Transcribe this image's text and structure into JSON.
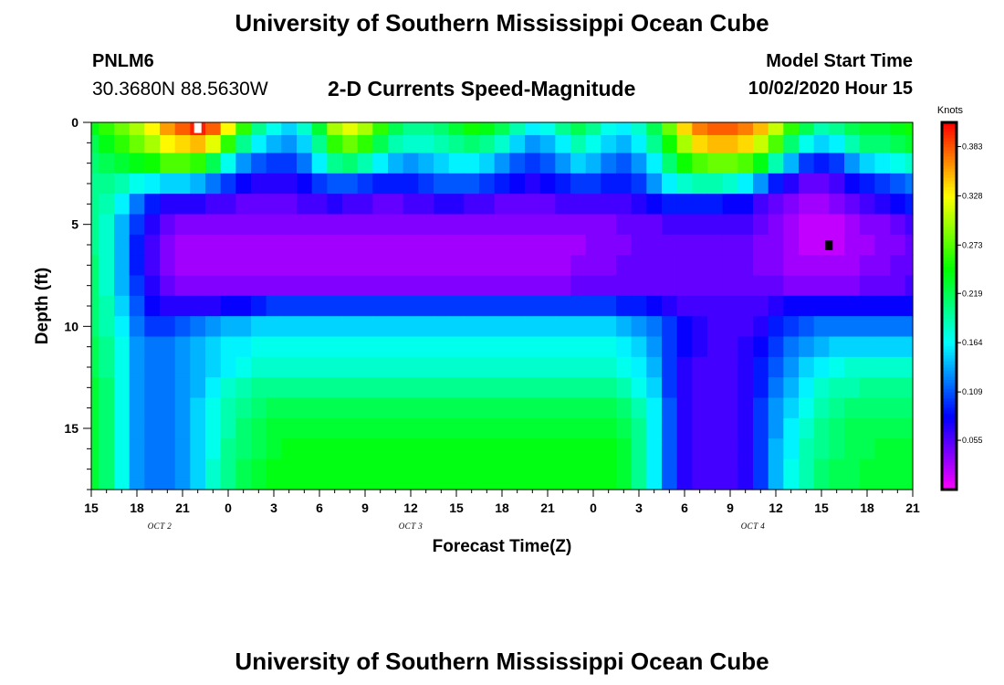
{
  "header": {
    "title": "University of Southern Mississippi Ocean Cube",
    "station_id": "PNLM6",
    "coordinates": "30.3680N 88.5630W",
    "subtitle": "2-D Currents Speed-Magnitude",
    "run_label": "Model Start Time",
    "run_time": "10/02/2020 Hour 15"
  },
  "footer": {
    "title": "University of Southern Mississippi Ocean Cube"
  },
  "chart_data": {
    "type": "heatmap",
    "title": "2-D Currents Speed-Magnitude",
    "xlabel": "Forecast Time(Z)",
    "ylabel": "Depth (ft)",
    "x_range_hours": [
      0,
      54
    ],
    "x_ticks": [
      "15",
      "18",
      "21",
      "0",
      "3",
      "6",
      "9",
      "12",
      "15",
      "18",
      "21",
      "0",
      "3",
      "6",
      "9",
      "12",
      "15",
      "18",
      "21"
    ],
    "date_labels": [
      {
        "label": "OCT 2",
        "hour": 4.5
      },
      {
        "label": "OCT 3",
        "hour": 21
      },
      {
        "label": "OCT 4",
        "hour": 43.5
      }
    ],
    "ylim": [
      0,
      18
    ],
    "y_ticks": [
      0,
      5,
      10,
      15
    ],
    "units": "Knots",
    "colorbar_range": [
      0,
      0.41
    ],
    "colorbar_ticks": [
      "0.383",
      "0.328",
      "0.273",
      "0.219",
      "0.164",
      "0.109",
      "0.055"
    ],
    "colorbar_tick_values": [
      0.383,
      0.328,
      0.273,
      0.219,
      0.164,
      0.109,
      0.055
    ],
    "depth_layers_ft": [
      0.25,
      1,
      2,
      3,
      4,
      5,
      6,
      7,
      8,
      9,
      10,
      11,
      12,
      13,
      14,
      15,
      16,
      17,
      17.75
    ],
    "time_samples_hours": [
      0,
      1,
      2,
      3,
      4,
      5,
      6,
      7,
      8,
      9,
      10,
      11,
      12,
      13,
      14,
      15,
      16,
      17,
      18,
      19,
      20,
      21,
      22,
      23,
      24,
      25,
      26,
      27,
      28,
      29,
      30,
      31,
      32,
      33,
      34,
      35,
      36,
      37,
      38,
      39,
      40,
      41,
      42,
      43,
      44,
      45,
      46,
      47,
      48,
      49,
      50,
      51,
      52,
      53,
      54
    ],
    "speed_knots": [
      [
        0.24,
        0.26,
        0.28,
        0.3,
        0.33,
        0.36,
        0.38,
        0.4,
        0.38,
        0.33,
        0.26,
        0.2,
        0.17,
        0.15,
        0.18,
        0.23,
        0.3,
        0.32,
        0.3,
        0.26,
        0.22,
        0.2,
        0.2,
        0.21,
        0.23,
        0.25,
        0.24,
        0.22,
        0.19,
        0.16,
        0.17,
        0.2,
        0.22,
        0.2,
        0.17,
        0.16,
        0.18,
        0.22,
        0.28,
        0.34,
        0.37,
        0.38,
        0.38,
        0.37,
        0.35,
        0.31,
        0.26,
        0.22,
        0.19,
        0.2,
        0.22,
        0.23,
        0.23,
        0.24,
        0.25
      ],
      [
        0.22,
        0.24,
        0.26,
        0.28,
        0.3,
        0.33,
        0.34,
        0.35,
        0.32,
        0.26,
        0.2,
        0.16,
        0.14,
        0.13,
        0.15,
        0.2,
        0.26,
        0.28,
        0.26,
        0.22,
        0.19,
        0.18,
        0.18,
        0.19,
        0.2,
        0.21,
        0.2,
        0.18,
        0.15,
        0.13,
        0.14,
        0.16,
        0.19,
        0.17,
        0.15,
        0.14,
        0.16,
        0.2,
        0.25,
        0.3,
        0.34,
        0.35,
        0.35,
        0.34,
        0.31,
        0.27,
        0.21,
        0.17,
        0.15,
        0.16,
        0.19,
        0.21,
        0.21,
        0.22,
        0.23
      ],
      [
        0.21,
        0.22,
        0.23,
        0.24,
        0.25,
        0.27,
        0.27,
        0.26,
        0.22,
        0.17,
        0.13,
        0.11,
        0.1,
        0.1,
        0.12,
        0.16,
        0.2,
        0.21,
        0.19,
        0.16,
        0.14,
        0.13,
        0.14,
        0.15,
        0.16,
        0.16,
        0.15,
        0.13,
        0.11,
        0.1,
        0.11,
        0.13,
        0.15,
        0.14,
        0.12,
        0.11,
        0.13,
        0.16,
        0.21,
        0.25,
        0.27,
        0.28,
        0.28,
        0.27,
        0.24,
        0.19,
        0.14,
        0.1,
        0.09,
        0.1,
        0.13,
        0.15,
        0.16,
        0.17,
        0.18
      ],
      [
        0.2,
        0.2,
        0.19,
        0.17,
        0.16,
        0.15,
        0.15,
        0.14,
        0.12,
        0.1,
        0.08,
        0.07,
        0.07,
        0.07,
        0.08,
        0.1,
        0.11,
        0.11,
        0.1,
        0.09,
        0.09,
        0.09,
        0.1,
        0.11,
        0.11,
        0.11,
        0.1,
        0.09,
        0.08,
        0.07,
        0.08,
        0.09,
        0.1,
        0.1,
        0.09,
        0.09,
        0.1,
        0.13,
        0.16,
        0.18,
        0.19,
        0.19,
        0.18,
        0.16,
        0.13,
        0.09,
        0.07,
        0.05,
        0.05,
        0.06,
        0.08,
        0.09,
        0.1,
        0.11,
        0.12
      ],
      [
        0.2,
        0.19,
        0.16,
        0.12,
        0.09,
        0.07,
        0.07,
        0.07,
        0.06,
        0.06,
        0.05,
        0.05,
        0.05,
        0.05,
        0.06,
        0.06,
        0.07,
        0.06,
        0.06,
        0.05,
        0.05,
        0.06,
        0.06,
        0.07,
        0.07,
        0.06,
        0.06,
        0.05,
        0.05,
        0.05,
        0.05,
        0.06,
        0.06,
        0.06,
        0.06,
        0.06,
        0.07,
        0.08,
        0.09,
        0.09,
        0.09,
        0.09,
        0.08,
        0.08,
        0.06,
        0.05,
        0.04,
        0.03,
        0.03,
        0.04,
        0.05,
        0.06,
        0.07,
        0.08,
        0.09
      ],
      [
        0.2,
        0.18,
        0.14,
        0.1,
        0.07,
        0.05,
        0.04,
        0.04,
        0.04,
        0.04,
        0.04,
        0.04,
        0.04,
        0.04,
        0.04,
        0.04,
        0.04,
        0.04,
        0.04,
        0.04,
        0.04,
        0.04,
        0.04,
        0.04,
        0.04,
        0.04,
        0.04,
        0.04,
        0.04,
        0.04,
        0.04,
        0.04,
        0.04,
        0.04,
        0.04,
        0.05,
        0.05,
        0.05,
        0.06,
        0.06,
        0.06,
        0.06,
        0.06,
        0.06,
        0.05,
        0.04,
        0.03,
        0.02,
        0.02,
        0.02,
        0.03,
        0.04,
        0.04,
        0.05,
        0.06
      ],
      [
        0.2,
        0.18,
        0.14,
        0.09,
        0.06,
        0.04,
        0.03,
        0.03,
        0.03,
        0.03,
        0.03,
        0.03,
        0.03,
        0.03,
        0.03,
        0.03,
        0.03,
        0.03,
        0.03,
        0.03,
        0.03,
        0.03,
        0.03,
        0.03,
        0.03,
        0.03,
        0.03,
        0.03,
        0.03,
        0.03,
        0.03,
        0.03,
        0.03,
        0.04,
        0.04,
        0.04,
        0.05,
        0.05,
        0.05,
        0.05,
        0.05,
        0.05,
        0.05,
        0.05,
        0.04,
        0.04,
        0.03,
        0.02,
        0.02,
        0.02,
        0.03,
        0.03,
        0.04,
        0.04,
        0.05
      ],
      [
        0.21,
        0.18,
        0.14,
        0.09,
        0.06,
        0.04,
        0.03,
        0.03,
        0.03,
        0.03,
        0.03,
        0.03,
        0.03,
        0.03,
        0.03,
        0.03,
        0.03,
        0.03,
        0.03,
        0.03,
        0.03,
        0.03,
        0.03,
        0.03,
        0.03,
        0.03,
        0.03,
        0.03,
        0.03,
        0.03,
        0.03,
        0.03,
        0.04,
        0.04,
        0.04,
        0.05,
        0.05,
        0.05,
        0.05,
        0.05,
        0.05,
        0.05,
        0.05,
        0.05,
        0.04,
        0.04,
        0.03,
        0.03,
        0.03,
        0.03,
        0.03,
        0.04,
        0.04,
        0.05,
        0.05
      ],
      [
        0.21,
        0.18,
        0.14,
        0.1,
        0.07,
        0.05,
        0.04,
        0.04,
        0.04,
        0.04,
        0.04,
        0.04,
        0.04,
        0.04,
        0.04,
        0.04,
        0.04,
        0.04,
        0.04,
        0.04,
        0.04,
        0.04,
        0.04,
        0.04,
        0.04,
        0.04,
        0.04,
        0.04,
        0.04,
        0.04,
        0.04,
        0.04,
        0.05,
        0.05,
        0.05,
        0.05,
        0.05,
        0.05,
        0.05,
        0.05,
        0.05,
        0.05,
        0.05,
        0.05,
        0.05,
        0.05,
        0.04,
        0.04,
        0.04,
        0.04,
        0.04,
        0.05,
        0.05,
        0.05,
        0.06
      ],
      [
        0.21,
        0.19,
        0.15,
        0.11,
        0.08,
        0.07,
        0.07,
        0.07,
        0.07,
        0.08,
        0.08,
        0.09,
        0.1,
        0.1,
        0.1,
        0.1,
        0.1,
        0.1,
        0.1,
        0.1,
        0.1,
        0.1,
        0.1,
        0.1,
        0.1,
        0.1,
        0.1,
        0.1,
        0.1,
        0.1,
        0.1,
        0.1,
        0.1,
        0.1,
        0.1,
        0.09,
        0.09,
        0.08,
        0.07,
        0.06,
        0.06,
        0.06,
        0.06,
        0.06,
        0.06,
        0.07,
        0.08,
        0.08,
        0.08,
        0.08,
        0.08,
        0.08,
        0.08,
        0.08,
        0.08
      ],
      [
        0.21,
        0.19,
        0.16,
        0.12,
        0.1,
        0.1,
        0.11,
        0.12,
        0.13,
        0.14,
        0.14,
        0.15,
        0.15,
        0.15,
        0.15,
        0.15,
        0.15,
        0.15,
        0.15,
        0.15,
        0.15,
        0.15,
        0.15,
        0.15,
        0.15,
        0.15,
        0.15,
        0.15,
        0.15,
        0.15,
        0.15,
        0.15,
        0.15,
        0.15,
        0.15,
        0.14,
        0.13,
        0.12,
        0.1,
        0.08,
        0.07,
        0.06,
        0.06,
        0.06,
        0.07,
        0.09,
        0.1,
        0.11,
        0.12,
        0.12,
        0.12,
        0.12,
        0.12,
        0.12,
        0.12
      ],
      [
        0.22,
        0.2,
        0.17,
        0.13,
        0.12,
        0.12,
        0.13,
        0.14,
        0.15,
        0.16,
        0.16,
        0.17,
        0.17,
        0.17,
        0.17,
        0.17,
        0.17,
        0.17,
        0.17,
        0.17,
        0.17,
        0.17,
        0.17,
        0.17,
        0.17,
        0.17,
        0.17,
        0.17,
        0.17,
        0.17,
        0.17,
        0.17,
        0.17,
        0.17,
        0.17,
        0.16,
        0.15,
        0.13,
        0.1,
        0.08,
        0.07,
        0.06,
        0.06,
        0.07,
        0.08,
        0.1,
        0.12,
        0.13,
        0.14,
        0.15,
        0.15,
        0.15,
        0.15,
        0.15,
        0.15
      ],
      [
        0.22,
        0.2,
        0.17,
        0.13,
        0.12,
        0.12,
        0.13,
        0.14,
        0.15,
        0.16,
        0.17,
        0.18,
        0.18,
        0.18,
        0.18,
        0.18,
        0.18,
        0.18,
        0.18,
        0.18,
        0.18,
        0.18,
        0.18,
        0.18,
        0.18,
        0.18,
        0.18,
        0.18,
        0.18,
        0.18,
        0.18,
        0.18,
        0.18,
        0.18,
        0.18,
        0.17,
        0.16,
        0.14,
        0.1,
        0.07,
        0.06,
        0.06,
        0.06,
        0.07,
        0.09,
        0.11,
        0.13,
        0.15,
        0.16,
        0.17,
        0.18,
        0.18,
        0.18,
        0.18,
        0.18
      ],
      [
        0.23,
        0.21,
        0.17,
        0.13,
        0.12,
        0.12,
        0.13,
        0.14,
        0.16,
        0.18,
        0.19,
        0.2,
        0.2,
        0.2,
        0.2,
        0.2,
        0.2,
        0.2,
        0.2,
        0.2,
        0.2,
        0.2,
        0.2,
        0.2,
        0.2,
        0.2,
        0.2,
        0.2,
        0.2,
        0.2,
        0.2,
        0.2,
        0.2,
        0.2,
        0.2,
        0.19,
        0.17,
        0.15,
        0.1,
        0.07,
        0.06,
        0.06,
        0.06,
        0.07,
        0.09,
        0.12,
        0.14,
        0.16,
        0.18,
        0.19,
        0.19,
        0.2,
        0.2,
        0.2,
        0.2
      ],
      [
        0.23,
        0.21,
        0.17,
        0.13,
        0.12,
        0.12,
        0.13,
        0.15,
        0.17,
        0.19,
        0.2,
        0.21,
        0.22,
        0.22,
        0.22,
        0.22,
        0.22,
        0.22,
        0.22,
        0.22,
        0.22,
        0.22,
        0.22,
        0.22,
        0.22,
        0.22,
        0.22,
        0.22,
        0.22,
        0.22,
        0.22,
        0.22,
        0.22,
        0.22,
        0.22,
        0.21,
        0.19,
        0.16,
        0.11,
        0.07,
        0.06,
        0.06,
        0.06,
        0.07,
        0.1,
        0.13,
        0.15,
        0.17,
        0.19,
        0.2,
        0.21,
        0.21,
        0.21,
        0.21,
        0.21
      ],
      [
        0.23,
        0.21,
        0.17,
        0.13,
        0.12,
        0.12,
        0.13,
        0.15,
        0.17,
        0.19,
        0.21,
        0.22,
        0.23,
        0.23,
        0.23,
        0.23,
        0.23,
        0.23,
        0.23,
        0.23,
        0.23,
        0.23,
        0.23,
        0.23,
        0.23,
        0.23,
        0.23,
        0.23,
        0.23,
        0.23,
        0.23,
        0.23,
        0.23,
        0.23,
        0.23,
        0.22,
        0.2,
        0.16,
        0.11,
        0.07,
        0.06,
        0.06,
        0.06,
        0.07,
        0.1,
        0.13,
        0.16,
        0.18,
        0.2,
        0.21,
        0.22,
        0.22,
        0.22,
        0.22,
        0.22
      ],
      [
        0.23,
        0.21,
        0.17,
        0.13,
        0.12,
        0.12,
        0.13,
        0.15,
        0.17,
        0.2,
        0.21,
        0.22,
        0.23,
        0.24,
        0.24,
        0.24,
        0.24,
        0.24,
        0.24,
        0.24,
        0.24,
        0.24,
        0.24,
        0.24,
        0.24,
        0.24,
        0.24,
        0.24,
        0.24,
        0.24,
        0.24,
        0.24,
        0.24,
        0.24,
        0.24,
        0.23,
        0.2,
        0.16,
        0.11,
        0.07,
        0.06,
        0.06,
        0.06,
        0.07,
        0.1,
        0.14,
        0.16,
        0.19,
        0.2,
        0.21,
        0.22,
        0.22,
        0.23,
        0.23,
        0.23
      ],
      [
        0.23,
        0.21,
        0.17,
        0.13,
        0.12,
        0.12,
        0.13,
        0.15,
        0.18,
        0.2,
        0.22,
        0.23,
        0.24,
        0.24,
        0.24,
        0.24,
        0.24,
        0.24,
        0.24,
        0.24,
        0.24,
        0.24,
        0.24,
        0.24,
        0.24,
        0.24,
        0.24,
        0.24,
        0.24,
        0.24,
        0.24,
        0.24,
        0.24,
        0.24,
        0.24,
        0.23,
        0.2,
        0.16,
        0.11,
        0.07,
        0.06,
        0.06,
        0.06,
        0.07,
        0.1,
        0.14,
        0.17,
        0.19,
        0.21,
        0.22,
        0.22,
        0.23,
        0.23,
        0.23,
        0.23
      ],
      [
        0.23,
        0.21,
        0.17,
        0.13,
        0.12,
        0.12,
        0.13,
        0.15,
        0.18,
        0.2,
        0.22,
        0.23,
        0.24,
        0.24,
        0.24,
        0.24,
        0.24,
        0.24,
        0.24,
        0.24,
        0.24,
        0.24,
        0.24,
        0.24,
        0.24,
        0.24,
        0.24,
        0.24,
        0.24,
        0.24,
        0.24,
        0.24,
        0.24,
        0.24,
        0.24,
        0.23,
        0.2,
        0.16,
        0.11,
        0.07,
        0.06,
        0.06,
        0.06,
        0.07,
        0.1,
        0.14,
        0.17,
        0.19,
        0.21,
        0.22,
        0.22,
        0.23,
        0.23,
        0.23,
        0.23
      ]
    ],
    "markers": [
      {
        "hour": 7,
        "depth_ft": 0.25,
        "color": "#ffffff"
      },
      {
        "hour": 48.5,
        "depth_ft": 6,
        "color": "#000000"
      }
    ]
  }
}
